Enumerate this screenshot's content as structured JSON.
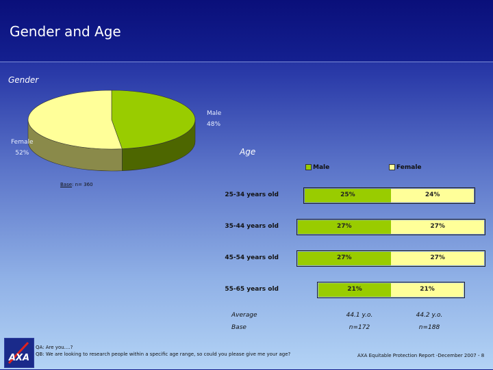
{
  "title": "Gender and Age",
  "gender_section_label": "Gender",
  "age_section_label": "Age",
  "pie": {
    "male_label": "Male",
    "male_value": "48%",
    "female_label": "Female",
    "female_value": "52%",
    "base_prefix": "Base",
    "base_suffix": ": n= 360"
  },
  "legend": {
    "male": "Male",
    "female": "Female"
  },
  "colors": {
    "male": "#99cc00",
    "female": "#ffff99"
  },
  "age_rows": [
    {
      "label": "25-34 years old",
      "male_text": "25%",
      "female_text": "24%"
    },
    {
      "label": "35-44 years old",
      "male_text": "27%",
      "female_text": "27%"
    },
    {
      "label": "45-54 years old",
      "male_text": "27%",
      "female_text": "27%"
    },
    {
      "label": "55-65 years old",
      "male_text": "21%",
      "female_text": "21%"
    }
  ],
  "stats": {
    "average_label": "Average",
    "average_male": "44.1 y.o.",
    "average_female": "44.2 y.o.",
    "base_label": "Base",
    "base_male": "n=172",
    "base_female": "n=188"
  },
  "footer": {
    "qa": "QA: Are you....?",
    "qb": "QB: We are looking to research people within a specific age range, so could you please give me your age?",
    "report": "AXA Equitable Protection Report -December 2007 - 8"
  },
  "logo_text": "AXA",
  "chart_data": [
    {
      "type": "pie",
      "title": "Gender",
      "categories": [
        "Male",
        "Female"
      ],
      "values": [
        48,
        52
      ]
    },
    {
      "type": "bar",
      "title": "Age",
      "categories": [
        "25-34 years old",
        "35-44 years old",
        "45-54 years old",
        "55-65 years old"
      ],
      "series": [
        {
          "name": "Male",
          "values": [
            25,
            27,
            27,
            21
          ]
        },
        {
          "name": "Female",
          "values": [
            24,
            27,
            27,
            21
          ]
        }
      ],
      "legend": "top"
    }
  ]
}
